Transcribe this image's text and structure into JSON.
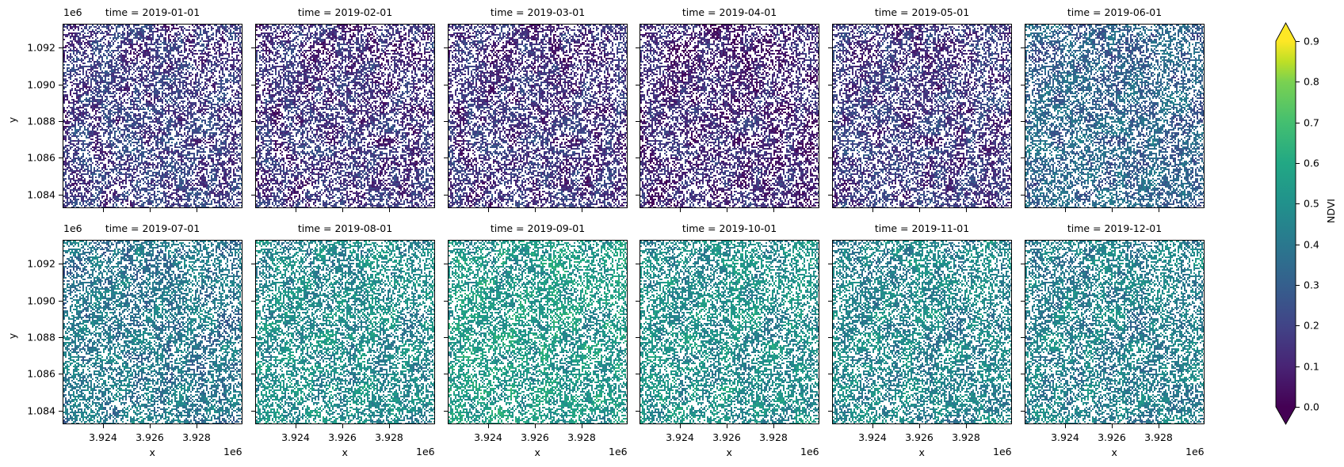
{
  "figure": {
    "colormap": "viridis",
    "colorbar": {
      "label": "NDVI",
      "ticks": [
        "0.0",
        "0.1",
        "0.2",
        "0.3",
        "0.4",
        "0.5",
        "0.6",
        "0.7",
        "0.8",
        "0.9"
      ],
      "extend": "both"
    },
    "y_axis": {
      "label": "y",
      "offset": "1e6",
      "ticks": [
        "1.092",
        "1.090",
        "1.088",
        "1.086",
        "1.084"
      ]
    },
    "x_axis": {
      "label": "x",
      "offset": "1e6",
      "ticks": [
        "3.924",
        "3.926",
        "3.928"
      ]
    },
    "panels": [
      {
        "title": "time = 2019-01-01"
      },
      {
        "title": "time = 2019-02-01"
      },
      {
        "title": "time = 2019-03-01"
      },
      {
        "title": "time = 2019-04-01"
      },
      {
        "title": "time = 2019-05-01"
      },
      {
        "title": "time = 2019-06-01"
      },
      {
        "title": "time = 2019-07-01"
      },
      {
        "title": "time = 2019-08-01"
      },
      {
        "title": "time = 2019-09-01"
      },
      {
        "title": "time = 2019-10-01"
      },
      {
        "title": "time = 2019-11-01"
      },
      {
        "title": "time = 2019-12-01"
      }
    ]
  },
  "chart_data": {
    "type": "heatmap",
    "title": "",
    "layout": "facet grid 2 rows x 6 columns (col_wrap=6), shared axes",
    "facet_variable": "time",
    "facets": [
      "2019-01-01",
      "2019-02-01",
      "2019-03-01",
      "2019-04-01",
      "2019-05-01",
      "2019-06-01",
      "2019-07-01",
      "2019-08-01",
      "2019-09-01",
      "2019-10-01",
      "2019-11-01",
      "2019-12-01"
    ],
    "facet_titles": [
      "time = 2019-01-01",
      "time = 2019-02-01",
      "time = 2019-03-01",
      "time = 2019-04-01",
      "time = 2019-05-01",
      "time = 2019-06-01",
      "time = 2019-07-01",
      "time = 2019-08-01",
      "time = 2019-09-01",
      "time = 2019-10-01",
      "time = 2019-11-01",
      "time = 2019-12-01"
    ],
    "xlabel": "x",
    "ylabel": "y",
    "x_offset_text": "1e6",
    "y_offset_text": "1e6",
    "x_ticks": [
      3.924,
      3.926,
      3.928
    ],
    "y_ticks": [
      1.084,
      1.086,
      1.088,
      1.09,
      1.092
    ],
    "xlim_1e6": [
      3.9223,
      3.9299
    ],
    "ylim_1e6": [
      1.0832,
      1.0932
    ],
    "colorbar": {
      "label": "NDVI",
      "colormap": "viridis",
      "vmin": 0.0,
      "vmax": 0.9,
      "ticks": [
        0.0,
        0.1,
        0.2,
        0.3,
        0.4,
        0.5,
        0.6,
        0.7,
        0.8,
        0.9
      ],
      "extend": "both"
    },
    "series": [
      {
        "name": "2019-01-01",
        "approx_mean_ndvi": 0.25
      },
      {
        "name": "2019-02-01",
        "approx_mean_ndvi": 0.22
      },
      {
        "name": "2019-03-01",
        "approx_mean_ndvi": 0.22
      },
      {
        "name": "2019-04-01",
        "approx_mean_ndvi": 0.19
      },
      {
        "name": "2019-05-01",
        "approx_mean_ndvi": 0.24
      },
      {
        "name": "2019-06-01",
        "approx_mean_ndvi": 0.38
      },
      {
        "name": "2019-07-01",
        "approx_mean_ndvi": 0.45
      },
      {
        "name": "2019-08-01",
        "approx_mean_ndvi": 0.52
      },
      {
        "name": "2019-09-01",
        "approx_mean_ndvi": 0.57
      },
      {
        "name": "2019-10-01",
        "approx_mean_ndvi": 0.53
      },
      {
        "name": "2019-11-01",
        "approx_mean_ndvi": 0.5
      },
      {
        "name": "2019-12-01",
        "approx_mean_ndvi": 0.48
      }
    ],
    "grid": false,
    "legend_position": "colorbar right"
  }
}
